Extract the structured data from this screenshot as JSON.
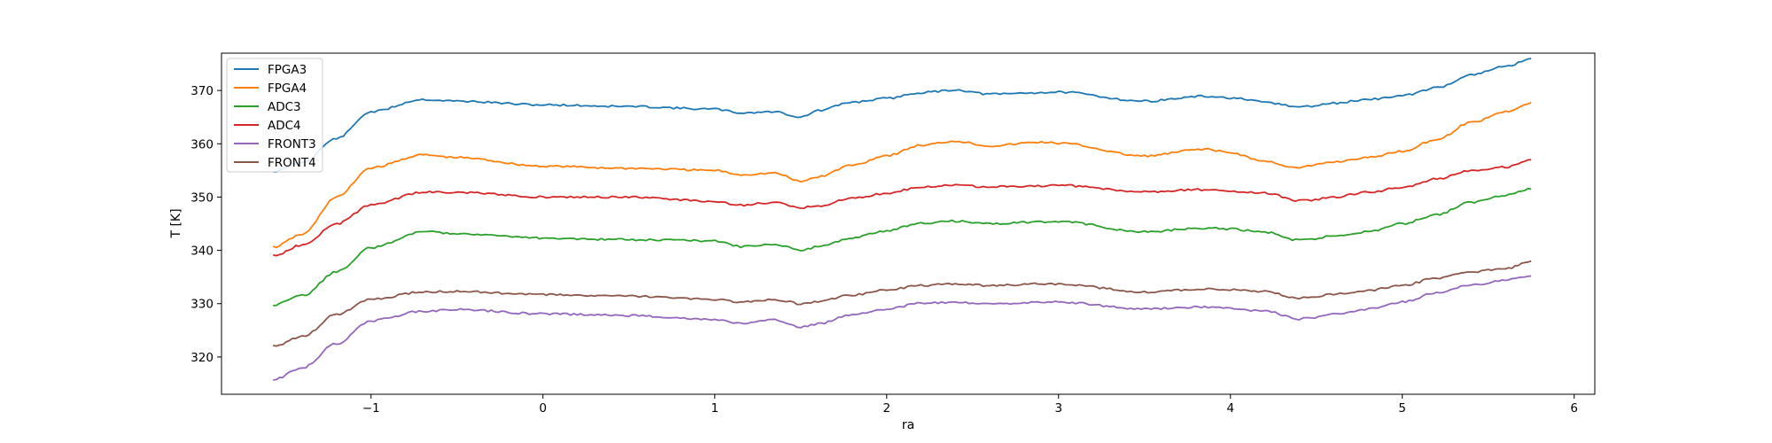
{
  "chart_data": {
    "type": "line",
    "title": "",
    "xlabel": "ra",
    "ylabel": "T [K]",
    "xlim": [
      -1.87,
      6.12
    ],
    "ylim": [
      313,
      377
    ],
    "x_ticks": [
      -1,
      0,
      1,
      2,
      3,
      4,
      5,
      6
    ],
    "x_tick_labels": [
      "−1",
      "0",
      "1",
      "2",
      "3",
      "4",
      "5",
      "6"
    ],
    "y_ticks": [
      320,
      330,
      340,
      350,
      360,
      370
    ],
    "y_tick_labels": [
      "320",
      "330",
      "340",
      "350",
      "360",
      "370"
    ],
    "grid": false,
    "legend_position": "top-left",
    "x": [
      -1.57,
      -1.4,
      -1.2,
      -1.0,
      -0.7,
      -0.5,
      0.0,
      0.5,
      1.0,
      1.15,
      1.35,
      1.5,
      1.6,
      1.8,
      2.0,
      2.2,
      2.4,
      2.6,
      2.9,
      3.0,
      3.5,
      3.85,
      4.0,
      4.2,
      4.4,
      4.45,
      4.6,
      4.8,
      5.0,
      5.2,
      5.4,
      5.6,
      5.75
    ],
    "series": [
      {
        "name": "FPGA3",
        "color": "#1f77b4",
        "values": [
          354.8,
          356.5,
          361.0,
          366.0,
          368.3,
          368.0,
          367.3,
          367.0,
          366.5,
          365.8,
          366.0,
          365.0,
          366.2,
          367.8,
          368.5,
          369.6,
          370.1,
          369.3,
          369.6,
          369.7,
          368.0,
          368.9,
          368.6,
          367.8,
          366.9,
          367.0,
          367.6,
          368.3,
          369.0,
          370.5,
          372.9,
          374.5,
          376.0
        ]
      },
      {
        "name": "FPGA4",
        "color": "#ff7f0e",
        "values": [
          340.6,
          343.0,
          350.0,
          355.5,
          357.9,
          357.4,
          355.8,
          355.4,
          355.0,
          354.2,
          354.5,
          352.9,
          353.8,
          356.0,
          357.8,
          359.7,
          360.5,
          359.6,
          360.3,
          360.1,
          357.7,
          359.0,
          358.3,
          356.7,
          355.4,
          355.8,
          356.6,
          357.4,
          358.6,
          360.8,
          364.0,
          366.0,
          367.7
        ]
      },
      {
        "name": "ADC3",
        "color": "#2ca02c",
        "values": [
          329.7,
          331.5,
          336.0,
          340.5,
          343.5,
          343.2,
          342.3,
          342.0,
          341.8,
          340.7,
          341.2,
          340.0,
          340.7,
          342.4,
          343.7,
          345.1,
          345.5,
          345.0,
          345.3,
          345.4,
          343.5,
          344.2,
          344.0,
          343.4,
          341.9,
          342.0,
          342.7,
          343.5,
          345.0,
          346.7,
          349.0,
          350.4,
          351.5
        ]
      },
      {
        "name": "ADC4",
        "color": "#d62728",
        "values": [
          339.0,
          341.0,
          345.0,
          348.5,
          350.9,
          350.9,
          350.0,
          350.0,
          349.2,
          348.5,
          349.0,
          348.0,
          348.3,
          349.8,
          350.7,
          351.9,
          352.2,
          351.9,
          352.1,
          352.2,
          351.0,
          351.4,
          351.1,
          350.8,
          349.3,
          349.4,
          350.0,
          350.9,
          351.8,
          353.4,
          355.0,
          355.6,
          357.0
        ]
      },
      {
        "name": "FRONT3",
        "color": "#9467bd",
        "values": [
          315.7,
          318.0,
          322.5,
          326.8,
          328.6,
          328.9,
          328.1,
          327.8,
          327.0,
          326.3,
          326.9,
          325.6,
          326.2,
          328.0,
          329.0,
          330.1,
          330.2,
          329.9,
          330.3,
          330.3,
          329.0,
          329.4,
          329.1,
          328.6,
          327.1,
          327.3,
          328.0,
          329.0,
          330.3,
          332.0,
          333.5,
          334.4,
          335.2
        ]
      },
      {
        "name": "FRONT4",
        "color": "#8c564b",
        "values": [
          322.0,
          323.8,
          328.0,
          330.8,
          332.2,
          332.3,
          331.7,
          331.4,
          330.8,
          330.3,
          330.8,
          330.0,
          330.4,
          331.6,
          332.6,
          333.4,
          333.7,
          333.4,
          333.7,
          333.7,
          332.2,
          332.8,
          332.6,
          332.3,
          331.0,
          331.1,
          331.8,
          332.5,
          333.4,
          334.8,
          336.0,
          336.5,
          338.0
        ]
      }
    ]
  }
}
